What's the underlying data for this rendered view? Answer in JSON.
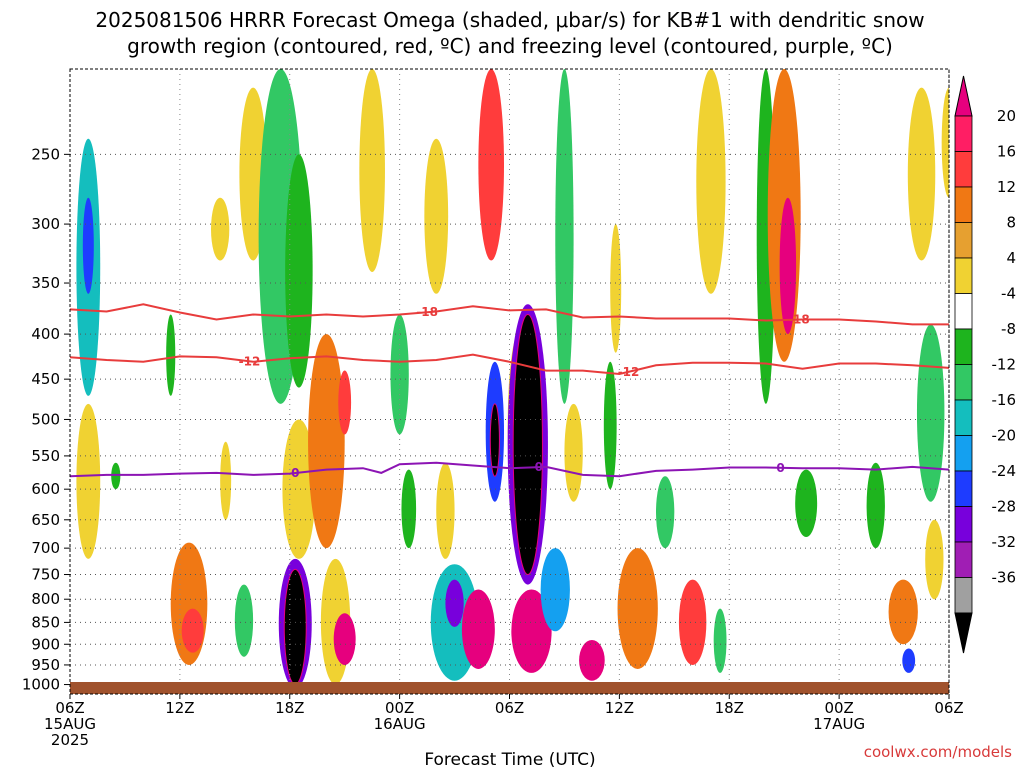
{
  "chart_data": {
    "type": "heatmap",
    "title_lines": [
      "2025081506 HRRR Forecast Omega (shaded, μbar/s) for KB#1 with dendritic snow",
      "growth region (contoured, red, ºC) and freezing level (contoured, purple, ºC)"
    ],
    "xlabel": "Forecast Time (UTC)",
    "ylabel": "",
    "x_ticks": [
      {
        "hour": 0,
        "line1": "06Z",
        "line2": "15AUG",
        "line3": "2025"
      },
      {
        "hour": 6,
        "line1": "12Z",
        "line2": "",
        "line3": ""
      },
      {
        "hour": 12,
        "line1": "18Z",
        "line2": "",
        "line3": ""
      },
      {
        "hour": 18,
        "line1": "00Z",
        "line2": "16AUG",
        "line3": ""
      },
      {
        "hour": 24,
        "line1": "06Z",
        "line2": "",
        "line3": ""
      },
      {
        "hour": 30,
        "line1": "12Z",
        "line2": "",
        "line3": ""
      },
      {
        "hour": 36,
        "line1": "18Z",
        "line2": "",
        "line3": ""
      },
      {
        "hour": 42,
        "line1": "00Z",
        "line2": "17AUG",
        "line3": ""
      },
      {
        "hour": 48,
        "line1": "06Z",
        "line2": "",
        "line3": ""
      }
    ],
    "xlim_hours": [
      0,
      48
    ],
    "y_axis": {
      "scale": "log",
      "ylim_hpa": [
        1025,
        200
      ],
      "ticks": [
        250,
        300,
        350,
        400,
        450,
        500,
        550,
        600,
        650,
        700,
        750,
        800,
        850,
        900,
        950,
        1000
      ]
    },
    "grid": true,
    "colorbar": {
      "labels": [
        "20",
        "16",
        "12",
        "8",
        "4",
        "-4",
        "-8",
        "-12",
        "-16",
        "-20",
        "-24",
        "-28",
        "-32",
        "-36"
      ],
      "levels": [
        20,
        16,
        12,
        8,
        4,
        -4,
        -8,
        -12,
        -16,
        -20,
        -24,
        -28,
        -32,
        -36
      ],
      "colors": [
        "#ff1e64",
        "#ff3c3c",
        "#f07814",
        "#e6a030",
        "#f0d232",
        "#ffffff",
        "#1eb41e",
        "#32c864",
        "#14bebe",
        "#14a0f0",
        "#1e3cff",
        "#7800dc",
        "#a01eb4",
        "#a0a0a0",
        "#000000"
      ],
      "top_color": "#e6007e",
      "bottom_color": "#000000"
    },
    "omega_cells": [
      {
        "hour": 1.0,
        "hpa_top": 240,
        "hpa_bot": 470,
        "value": -12,
        "w": 1.3
      },
      {
        "hour": 1.0,
        "hpa_top": 280,
        "hpa_bot": 360,
        "value": -20,
        "w": 0.6
      },
      {
        "hour": 1.0,
        "hpa_top": 480,
        "hpa_bot": 720,
        "value": 6,
        "w": 1.3
      },
      {
        "hour": 2.5,
        "hpa_top": 560,
        "hpa_bot": 600,
        "value": -6,
        "w": 0.5
      },
      {
        "hour": 5.5,
        "hpa_top": 380,
        "hpa_bot": 470,
        "value": -6,
        "w": 0.5
      },
      {
        "hour": 6.5,
        "hpa_top": 690,
        "hpa_bot": 950,
        "value": 10,
        "w": 2.0
      },
      {
        "hour": 6.7,
        "hpa_top": 820,
        "hpa_bot": 920,
        "value": 14,
        "w": 1.2
      },
      {
        "hour": 8.2,
        "hpa_top": 280,
        "hpa_bot": 330,
        "value": 6,
        "w": 1.0
      },
      {
        "hour": 8.5,
        "hpa_top": 530,
        "hpa_bot": 650,
        "value": 4,
        "w": 0.6
      },
      {
        "hour": 9.5,
        "hpa_top": 770,
        "hpa_bot": 930,
        "value": -10,
        "w": 1.0
      },
      {
        "hour": 10.0,
        "hpa_top": 210,
        "hpa_bot": 330,
        "value": 6,
        "w": 1.5
      },
      {
        "hour": 11.5,
        "hpa_top": 200,
        "hpa_bot": 480,
        "value": -8,
        "w": 2.4
      },
      {
        "hour": 12.5,
        "hpa_top": 250,
        "hpa_bot": 460,
        "value": -6,
        "w": 1.5
      },
      {
        "hour": 12.5,
        "hpa_top": 500,
        "hpa_bot": 720,
        "value": 6,
        "w": 1.8
      },
      {
        "hour": 12.3,
        "hpa_top": 720,
        "hpa_bot": 1010,
        "value": -24,
        "w": 1.8
      },
      {
        "hour": 12.3,
        "hpa_top": 740,
        "hpa_bot": 1000,
        "value": -36,
        "w": 1.2
      },
      {
        "hour": 14.0,
        "hpa_top": 400,
        "hpa_bot": 700,
        "value": 8,
        "w": 2.0
      },
      {
        "hour": 15.0,
        "hpa_top": 440,
        "hpa_bot": 520,
        "value": 14,
        "w": 0.7
      },
      {
        "hour": 14.5,
        "hpa_top": 720,
        "hpa_bot": 1000,
        "value": 6,
        "w": 1.6
      },
      {
        "hour": 15.0,
        "hpa_top": 830,
        "hpa_bot": 950,
        "value": 20,
        "w": 1.2
      },
      {
        "hour": 16.5,
        "hpa_top": 200,
        "hpa_bot": 340,
        "value": 6,
        "w": 1.4
      },
      {
        "hour": 18.0,
        "hpa_top": 380,
        "hpa_bot": 520,
        "value": -10,
        "w": 1.0
      },
      {
        "hour": 18.5,
        "hpa_top": 570,
        "hpa_bot": 700,
        "value": -6,
        "w": 0.8
      },
      {
        "hour": 20.0,
        "hpa_top": 240,
        "hpa_bot": 360,
        "value": 6,
        "w": 1.3
      },
      {
        "hour": 20.5,
        "hpa_top": 560,
        "hpa_bot": 720,
        "value": 6,
        "w": 1.0
      },
      {
        "hour": 21.0,
        "hpa_top": 730,
        "hpa_bot": 990,
        "value": -14,
        "w": 2.6
      },
      {
        "hour": 21.0,
        "hpa_top": 760,
        "hpa_bot": 860,
        "value": -26,
        "w": 1.0
      },
      {
        "hour": 22.3,
        "hpa_top": 780,
        "hpa_bot": 960,
        "value": 20,
        "w": 1.8
      },
      {
        "hour": 23.0,
        "hpa_top": 200,
        "hpa_bot": 330,
        "value": 14,
        "w": 1.4
      },
      {
        "hour": 23.2,
        "hpa_top": 430,
        "hpa_bot": 620,
        "value": -22,
        "w": 1.0
      },
      {
        "hour": 23.2,
        "hpa_top": 480,
        "hpa_bot": 580,
        "value": -36,
        "w": 0.5
      },
      {
        "hour": 24.5,
        "hpa_top": 400,
        "hpa_bot": 650,
        "value": 6,
        "w": 1.2
      },
      {
        "hour": 25.0,
        "hpa_top": 370,
        "hpa_bot": 770,
        "value": -24,
        "w": 2.2
      },
      {
        "hour": 25.0,
        "hpa_top": 380,
        "hpa_bot": 750,
        "value": -36,
        "w": 1.6
      },
      {
        "hour": 25.2,
        "hpa_top": 780,
        "hpa_bot": 970,
        "value": 20,
        "w": 2.2
      },
      {
        "hour": 26.5,
        "hpa_top": 700,
        "hpa_bot": 870,
        "value": -18,
        "w": 1.6
      },
      {
        "hour": 27.0,
        "hpa_top": 200,
        "hpa_bot": 480,
        "value": -8,
        "w": 1.0
      },
      {
        "hour": 27.5,
        "hpa_top": 480,
        "hpa_bot": 620,
        "value": 6,
        "w": 1.0
      },
      {
        "hour": 28.5,
        "hpa_top": 890,
        "hpa_bot": 990,
        "value": 20,
        "w": 1.4
      },
      {
        "hour": 29.5,
        "hpa_top": 430,
        "hpa_bot": 600,
        "value": -6,
        "w": 0.7
      },
      {
        "hour": 29.8,
        "hpa_top": 300,
        "hpa_bot": 420,
        "value": 6,
        "w": 0.6
      },
      {
        "hour": 31.0,
        "hpa_top": 700,
        "hpa_bot": 960,
        "value": 10,
        "w": 2.2
      },
      {
        "hour": 32.5,
        "hpa_top": 580,
        "hpa_bot": 700,
        "value": -8,
        "w": 1.0
      },
      {
        "hour": 34.0,
        "hpa_top": 760,
        "hpa_bot": 950,
        "value": 14,
        "w": 1.5
      },
      {
        "hour": 35.0,
        "hpa_top": 200,
        "hpa_bot": 360,
        "value": 6,
        "w": 1.6
      },
      {
        "hour": 35.5,
        "hpa_top": 820,
        "hpa_bot": 970,
        "value": -8,
        "w": 0.7
      },
      {
        "hour": 38.0,
        "hpa_top": 200,
        "hpa_bot": 480,
        "value": -6,
        "w": 1.0
      },
      {
        "hour": 39.0,
        "hpa_top": 200,
        "hpa_bot": 430,
        "value": 10,
        "w": 1.8
      },
      {
        "hour": 39.2,
        "hpa_top": 280,
        "hpa_bot": 400,
        "value": 20,
        "w": 0.9
      },
      {
        "hour": 40.2,
        "hpa_top": 570,
        "hpa_bot": 680,
        "value": -6,
        "w": 1.2
      },
      {
        "hour": 44.0,
        "hpa_top": 560,
        "hpa_bot": 700,
        "value": -6,
        "w": 1.0
      },
      {
        "hour": 45.5,
        "hpa_top": 760,
        "hpa_bot": 900,
        "value": 10,
        "w": 1.6
      },
      {
        "hour": 47.0,
        "hpa_top": 390,
        "hpa_bot": 620,
        "value": -10,
        "w": 1.5
      },
      {
        "hour": 46.5,
        "hpa_top": 210,
        "hpa_bot": 330,
        "value": 4,
        "w": 1.5
      },
      {
        "hour": 47.2,
        "hpa_top": 650,
        "hpa_bot": 800,
        "value": 6,
        "w": 1.0
      },
      {
        "hour": 45.8,
        "hpa_top": 910,
        "hpa_bot": 970,
        "value": -20,
        "w": 0.7
      },
      {
        "hour": 48.0,
        "hpa_top": 210,
        "hpa_bot": 280,
        "value": 4,
        "w": 0.8
      }
    ],
    "contours": [
      {
        "name": "-18",
        "color": "#e83c3c",
        "points": [
          [
            0,
            375
          ],
          [
            2,
            377
          ],
          [
            4,
            370
          ],
          [
            6,
            378
          ],
          [
            8,
            385
          ],
          [
            10,
            380
          ],
          [
            12,
            382
          ],
          [
            14,
            380
          ],
          [
            16,
            382
          ],
          [
            18,
            380
          ],
          [
            20,
            377
          ],
          [
            22,
            372
          ],
          [
            24,
            376
          ],
          [
            26,
            375
          ],
          [
            28,
            383
          ],
          [
            30,
            382
          ],
          [
            32,
            384
          ],
          [
            34,
            384
          ],
          [
            36,
            384
          ],
          [
            38,
            386
          ],
          [
            40,
            385
          ],
          [
            42,
            385
          ],
          [
            44,
            387
          ],
          [
            46,
            390
          ],
          [
            48,
            390
          ]
        ],
        "labels": [
          {
            "hour": 19.5,
            "text": "-18"
          },
          {
            "hour": 39.8,
            "text": "-18"
          }
        ]
      },
      {
        "name": "-12",
        "color": "#e83c3c",
        "points": [
          [
            0,
            425
          ],
          [
            2,
            428
          ],
          [
            4,
            430
          ],
          [
            6,
            424
          ],
          [
            8,
            425
          ],
          [
            10,
            430
          ],
          [
            12,
            426
          ],
          [
            14,
            424
          ],
          [
            16,
            428
          ],
          [
            18,
            430
          ],
          [
            20,
            428
          ],
          [
            22,
            422
          ],
          [
            24,
            430
          ],
          [
            26,
            440
          ],
          [
            28,
            440
          ],
          [
            30,
            444
          ],
          [
            32,
            434
          ],
          [
            34,
            431
          ],
          [
            36,
            431
          ],
          [
            38,
            432
          ],
          [
            40,
            438
          ],
          [
            42,
            432
          ],
          [
            44,
            432
          ],
          [
            46,
            434
          ],
          [
            48,
            437
          ]
        ],
        "labels": [
          {
            "hour": 9.8,
            "text": "-12"
          },
          {
            "hour": 30.5,
            "text": "-12"
          }
        ]
      },
      {
        "name": "0",
        "color": "#8c14b4",
        "points": [
          [
            0,
            580
          ],
          [
            2,
            578
          ],
          [
            4,
            578
          ],
          [
            6,
            576
          ],
          [
            8,
            575
          ],
          [
            10,
            578
          ],
          [
            12,
            576
          ],
          [
            14,
            570
          ],
          [
            16,
            568
          ],
          [
            17,
            575
          ],
          [
            18,
            562
          ],
          [
            20,
            560
          ],
          [
            22,
            564
          ],
          [
            24,
            568
          ],
          [
            26,
            566
          ],
          [
            28,
            578
          ],
          [
            30,
            580
          ],
          [
            32,
            572
          ],
          [
            34,
            570
          ],
          [
            36,
            567
          ],
          [
            38,
            567
          ],
          [
            40,
            568
          ],
          [
            42,
            568
          ],
          [
            44,
            570
          ],
          [
            46,
            566
          ],
          [
            48,
            570
          ]
        ],
        "labels": [
          {
            "hour": 12.3,
            "text": "0"
          },
          {
            "hour": 25.6,
            "text": "0"
          },
          {
            "hour": 38.8,
            "text": "0"
          }
        ]
      }
    ]
  },
  "credit": "coolwx.com/models"
}
